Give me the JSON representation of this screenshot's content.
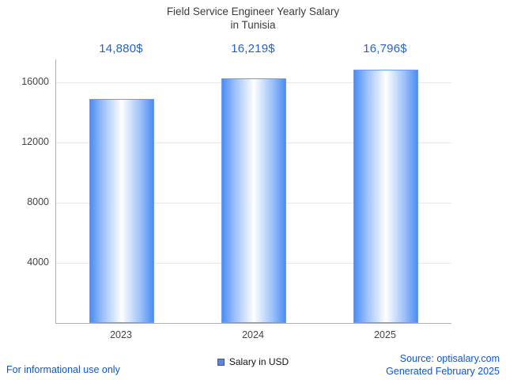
{
  "chart_data": {
    "type": "bar",
    "title": "Field Service Engineer Yearly Salary",
    "subtitle": "in Tunisia",
    "categories": [
      "2023",
      "2024",
      "2025"
    ],
    "series": [
      {
        "name": "Salary in USD",
        "values": [
          14880,
          16219,
          16796
        ]
      }
    ],
    "value_labels": [
      "14,880$",
      "16,219$",
      "16,796$"
    ],
    "xlabel": "",
    "ylabel": "",
    "ylim": [
      0,
      17500
    ],
    "yticks": [
      4000,
      8000,
      12000,
      16000
    ],
    "grid": true,
    "legend_position": "bottom",
    "colors": {
      "bar_edge": "#4b8df2",
      "bar_center": "#ffffff",
      "value_label": "#2563c9",
      "axis": "#b0b0b0",
      "gridline": "#e8e8e8",
      "footer_link": "#1155cc"
    }
  },
  "legend": {
    "label": "Salary in USD"
  },
  "footer": {
    "disclaimer": "For informational use only",
    "source": "Source: optisalary.com",
    "generated": "Generated February 2025"
  }
}
